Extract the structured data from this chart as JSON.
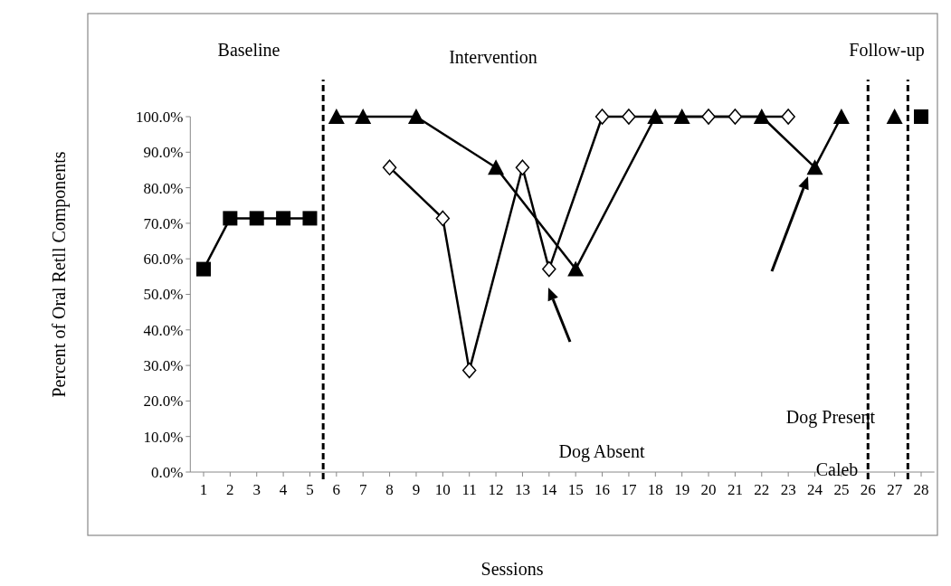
{
  "chart_data": {
    "type": "line",
    "xlabel": "Sessions",
    "ylabel": "Percent of Oral Retll Components",
    "xlim": [
      0.5,
      28.5
    ],
    "xticks": [
      1,
      2,
      3,
      4,
      5,
      6,
      7,
      8,
      9,
      10,
      11,
      12,
      13,
      14,
      15,
      16,
      17,
      18,
      19,
      20,
      21,
      22,
      23,
      24,
      25,
      26,
      27,
      28
    ],
    "ylim": [
      0,
      100
    ],
    "yticks": [
      {
        "value": 0,
        "label": "0.0%"
      },
      {
        "value": 10,
        "label": "10.0%"
      },
      {
        "value": 20,
        "label": "20.0%"
      },
      {
        "value": 30,
        "label": "30.0%"
      },
      {
        "value": 40,
        "label": "40.0%"
      },
      {
        "value": 50,
        "label": "50.0%"
      },
      {
        "value": 60,
        "label": "60.0%"
      },
      {
        "value": 70,
        "label": "70.0%"
      },
      {
        "value": 80,
        "label": "80.0%"
      },
      {
        "value": 90,
        "label": "90.0%"
      },
      {
        "value": 100,
        "label": "100.0%"
      }
    ],
    "grid": false,
    "line_style": "solid",
    "series": [
      {
        "color": "#000000",
        "marker": "square",
        "x": [
          1,
          2,
          3,
          4,
          5
        ],
        "values": [
          57.1,
          71.4,
          71.4,
          71.4,
          71.4
        ]
      },
      {
        "color": "#000000",
        "marker": "triangle",
        "x": [
          6,
          7,
          9,
          12,
          15,
          18,
          19,
          22,
          24,
          25
        ],
        "values": [
          100,
          100,
          100,
          85.7,
          57.1,
          100,
          100,
          100,
          85.7,
          100
        ]
      },
      {
        "color": "#000000",
        "marker": "diamond",
        "x": [
          8,
          10,
          11,
          13,
          14,
          16,
          17,
          20,
          21,
          23
        ],
        "values": [
          85.7,
          71.4,
          28.6,
          85.7,
          57.1,
          100,
          100,
          100,
          100,
          100
        ]
      },
      {
        "color": "#000000",
        "marker": "triangle",
        "x": [
          27
        ],
        "values": [
          100
        ]
      },
      {
        "color": "#000000",
        "marker": "square",
        "x": [
          28
        ],
        "values": [
          100
        ]
      }
    ],
    "ref_lines": [
      {
        "axis": "x",
        "value": 5.5,
        "line_style": "dashed"
      },
      {
        "axis": "x",
        "value": 26,
        "line_style": "dashed"
      },
      {
        "axis": "x",
        "value": 27.5,
        "line_style": "dashed"
      }
    ],
    "annotations": [
      "Baseline",
      "Intervention",
      "Follow-up",
      "Caleb",
      "Dog Absent",
      "Dog Present"
    ]
  }
}
